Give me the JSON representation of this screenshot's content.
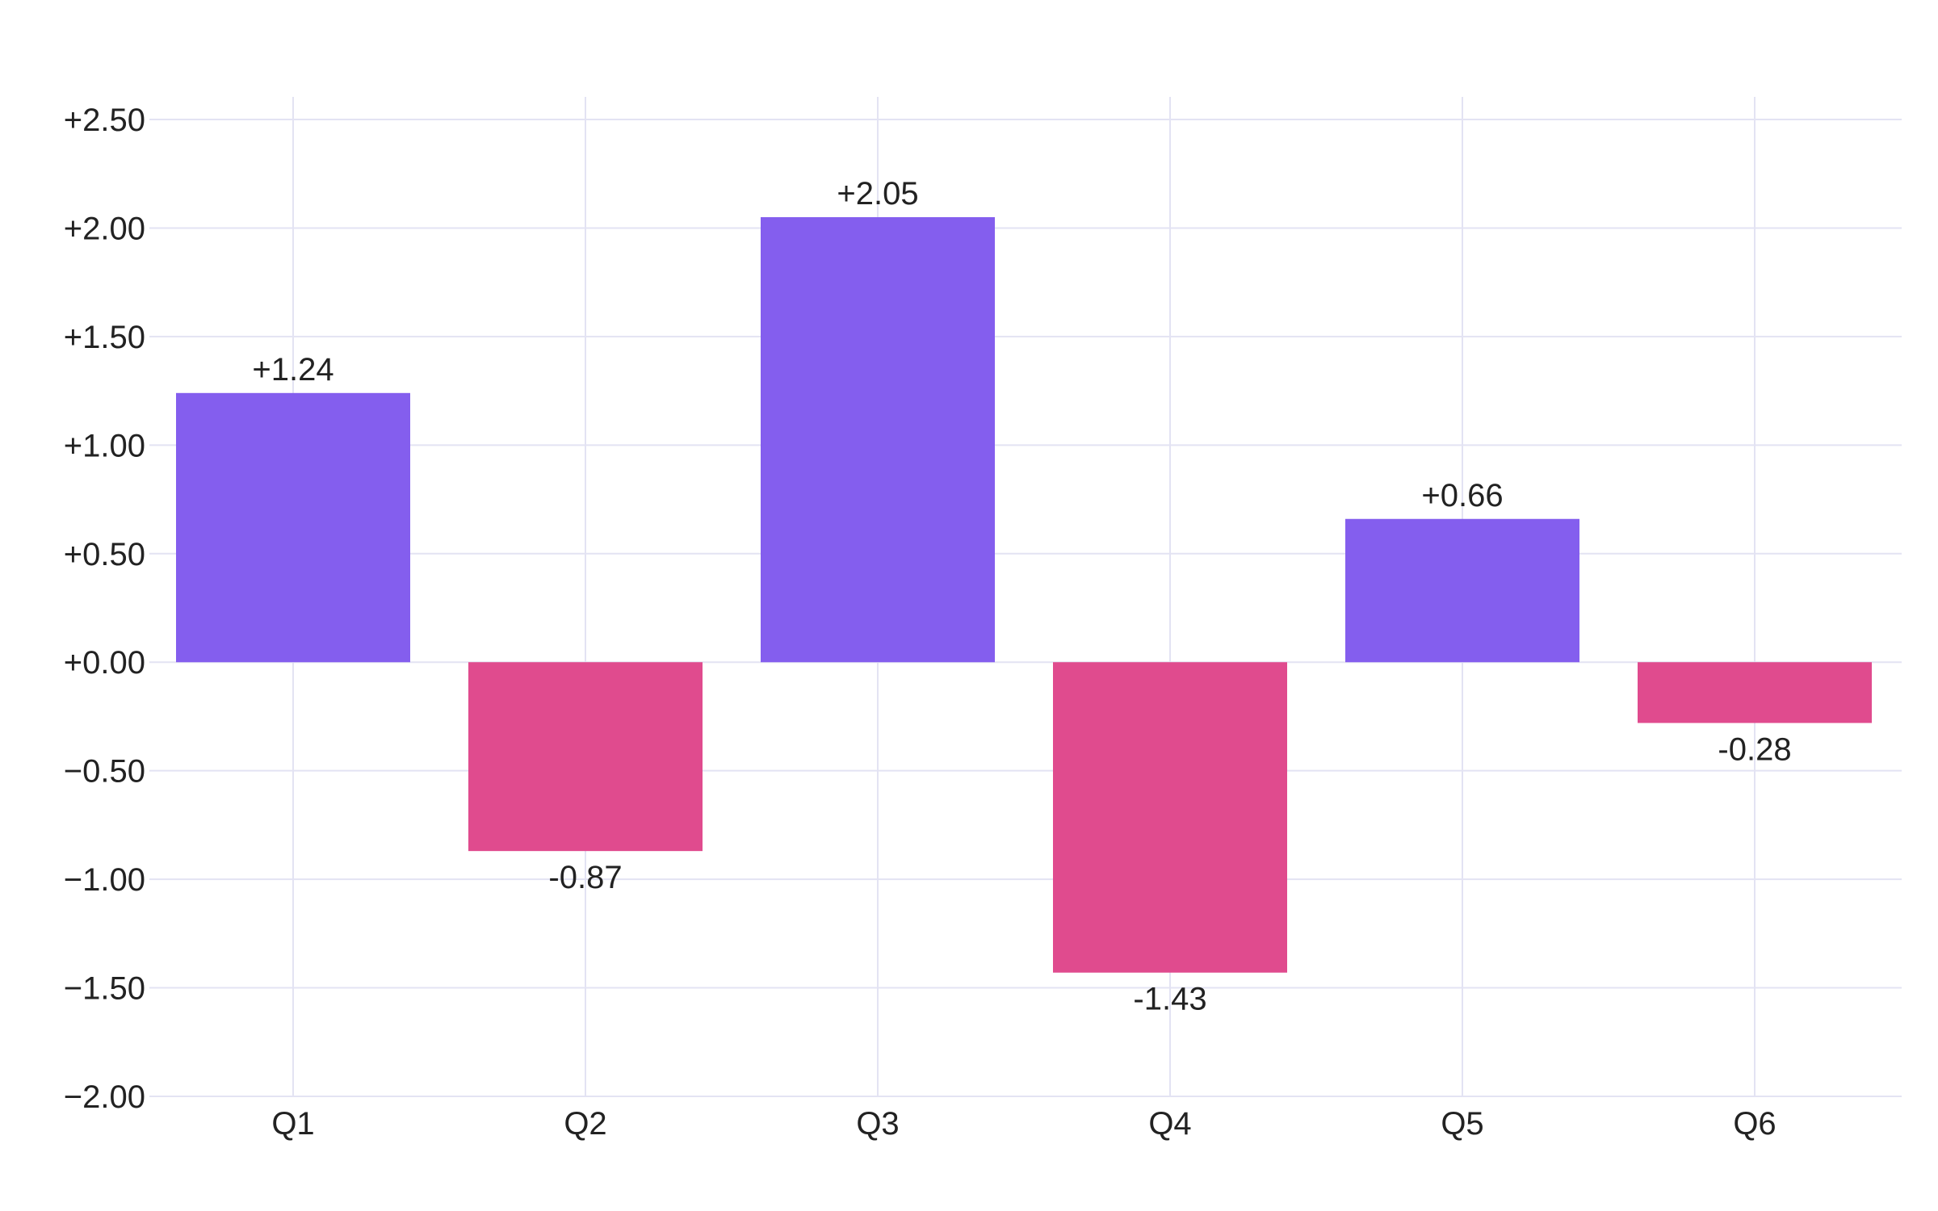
{
  "chart_data": {
    "type": "bar",
    "title": "",
    "xlabel": "",
    "ylabel": "",
    "categories": [
      "Q1",
      "Q2",
      "Q3",
      "Q4",
      "Q5",
      "Q6"
    ],
    "values": [
      1.24,
      -0.87,
      2.05,
      -1.43,
      0.66,
      -0.28
    ],
    "value_labels": [
      "+1.24",
      "-0.87",
      "+2.05",
      "-1.43",
      "+0.66",
      "-0.28"
    ],
    "ylim": [
      -2.0,
      2.5
    ],
    "yticks": [
      -2.0,
      -1.5,
      -1.0,
      -0.5,
      0.0,
      0.5,
      1.0,
      1.5,
      2.0,
      2.5
    ],
    "ytick_labels": [
      "−2.00",
      "−1.50",
      "−1.00",
      "−0.50",
      "+0.00",
      "+0.50",
      "+1.00",
      "+1.50",
      "+2.00",
      "+2.50"
    ],
    "grid": true,
    "legend": "none",
    "colors": {
      "positive": "#845EEE",
      "negative": "#E04B8E",
      "grid": "#E3E3F3",
      "text": "#222222"
    }
  }
}
